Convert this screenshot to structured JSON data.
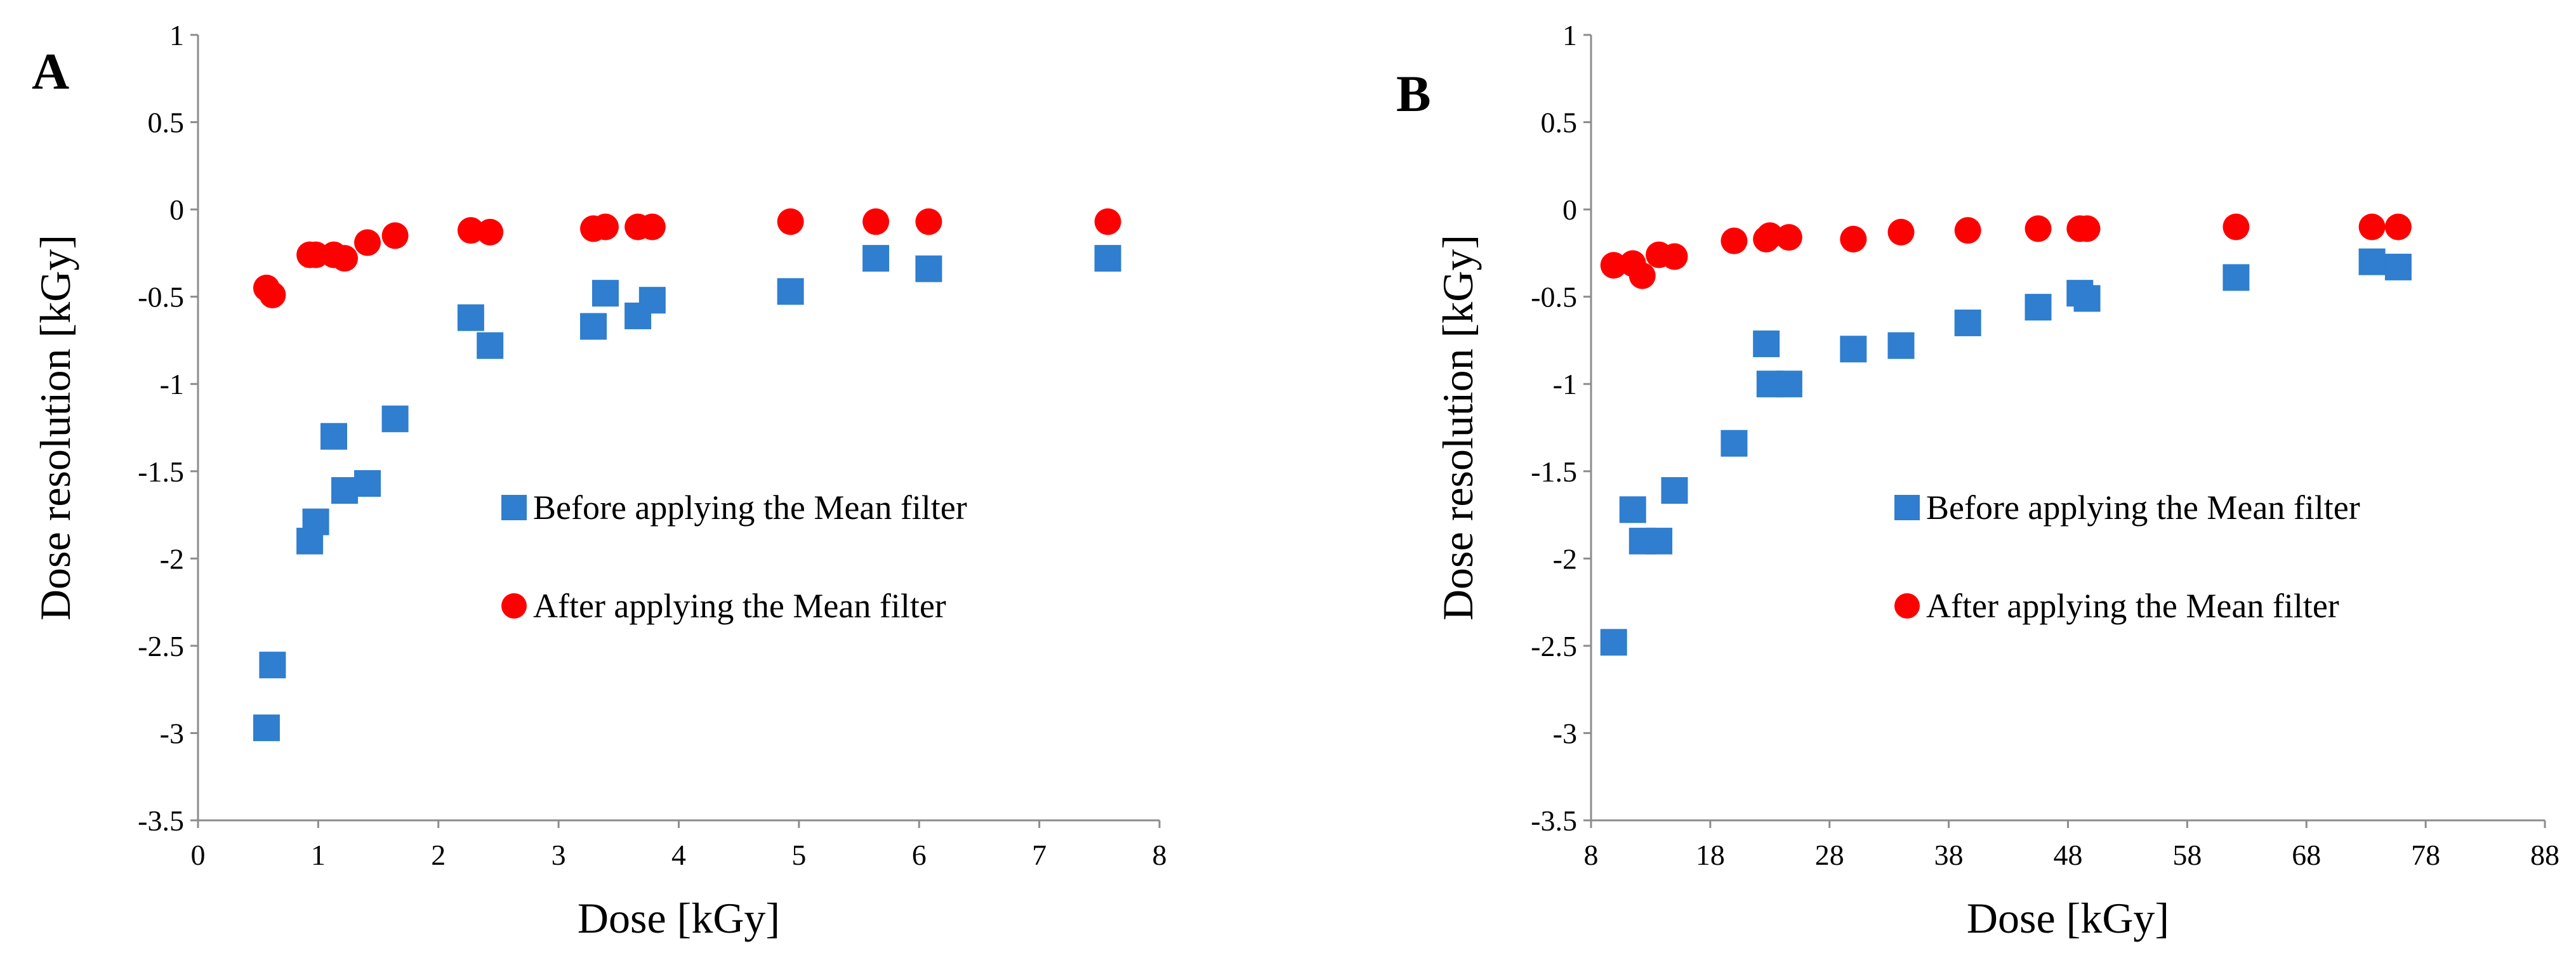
{
  "chart_data": [
    {
      "type": "scatter",
      "panel_label": "A",
      "xlabel": "Dose [kGy]",
      "ylabel": "Dose resolution [kGy]",
      "xlim": [
        0,
        8
      ],
      "ylim": [
        -3.5,
        1
      ],
      "xticks": [
        0,
        1,
        2,
        3,
        4,
        5,
        6,
        7,
        8
      ],
      "yticks": [
        1,
        0.5,
        0,
        -0.5,
        -1,
        -1.5,
        -2,
        -2.5,
        -3,
        -3.5
      ],
      "xtick_labels": [
        "0",
        "1",
        "2",
        "3",
        "4",
        "5",
        "6",
        "7",
        "8"
      ],
      "ytick_labels": [
        "1",
        "0.5",
        "0",
        "-0.5",
        "-1",
        "-1.5",
        "-2",
        "-2.5",
        "-3",
        "-3.5"
      ],
      "legend": [
        "Before applying the Mean filter",
        "After applying the Mean filter"
      ],
      "legend_position": "center-right",
      "series": [
        {
          "name": "Before applying the Mean filter",
          "marker": "square",
          "color": "#2f7ecf",
          "x": [
            0.57,
            0.62,
            0.93,
            0.98,
            1.13,
            1.22,
            1.41,
            1.64,
            2.27,
            2.43,
            3.29,
            3.39,
            3.66,
            3.78,
            4.93,
            5.64,
            6.08,
            7.57
          ],
          "y": [
            -2.97,
            -2.61,
            -1.9,
            -1.79,
            -1.3,
            -1.61,
            -1.57,
            -1.2,
            -0.62,
            -0.78,
            -0.67,
            -0.48,
            -0.61,
            -0.52,
            -0.47,
            -0.28,
            -0.34,
            -0.28
          ]
        },
        {
          "name": "After applying the Mean filter",
          "marker": "circle",
          "color": "#ff0000",
          "x": [
            0.57,
            0.62,
            0.93,
            0.98,
            1.13,
            1.22,
            1.41,
            1.64,
            2.27,
            2.43,
            3.29,
            3.39,
            3.66,
            3.78,
            4.93,
            5.64,
            6.08,
            7.57
          ],
          "y": [
            -0.45,
            -0.49,
            -0.26,
            -0.26,
            -0.26,
            -0.28,
            -0.19,
            -0.15,
            -0.12,
            -0.13,
            -0.11,
            -0.1,
            -0.1,
            -0.1,
            -0.07,
            -0.07,
            -0.07,
            -0.07
          ]
        }
      ]
    },
    {
      "type": "scatter",
      "panel_label": "B",
      "xlabel": "Dose [kGy]",
      "ylabel": "Dose resolution [kGy]",
      "xlim": [
        8,
        88
      ],
      "ylim": [
        -3.5,
        1
      ],
      "xticks": [
        8,
        18,
        28,
        38,
        48,
        58,
        68,
        78,
        88
      ],
      "yticks": [
        1,
        0.5,
        0,
        -0.5,
        -1,
        -1.5,
        -2,
        -2.5,
        -3,
        -3.5
      ],
      "xtick_labels": [
        "8",
        "18",
        "28",
        "38",
        "48",
        "58",
        "68",
        "78",
        "88"
      ],
      "ytick_labels": [
        "1",
        "0.5",
        "0",
        "-0.5",
        "-1",
        "-1.5",
        "-2",
        "-2.5",
        "-3",
        "-3.5"
      ],
      "legend": [
        "Before applying the Mean filter",
        "After applying the Mean filter"
      ],
      "legend_position": "center-right",
      "series": [
        {
          "name": "Before applying the Mean filter",
          "marker": "square",
          "color": "#2f7ecf",
          "x": [
            9.9,
            11.5,
            12.3,
            13.7,
            15.0,
            20.0,
            22.7,
            23.0,
            24.6,
            30.0,
            34.0,
            39.6,
            45.5,
            49.0,
            49.6,
            62.1,
            73.5,
            75.7
          ],
          "y": [
            -2.48,
            -1.72,
            -1.9,
            -1.9,
            -1.61,
            -1.34,
            -0.77,
            -1.0,
            -1.0,
            -0.8,
            -0.78,
            -0.65,
            -0.56,
            -0.48,
            -0.51,
            -0.39,
            -0.3,
            -0.33
          ]
        },
        {
          "name": "After applying the Mean filter",
          "marker": "circle",
          "color": "#ff0000",
          "x": [
            9.9,
            11.5,
            12.3,
            13.7,
            15.0,
            20.0,
            22.7,
            23.0,
            24.6,
            30.0,
            34.0,
            39.6,
            45.5,
            49.0,
            49.6,
            62.1,
            73.5,
            75.7
          ],
          "y": [
            -0.32,
            -0.31,
            -0.38,
            -0.26,
            -0.27,
            -0.18,
            -0.17,
            -0.15,
            -0.16,
            -0.17,
            -0.13,
            -0.12,
            -0.11,
            -0.11,
            -0.11,
            -0.1,
            -0.1,
            -0.1
          ]
        }
      ]
    }
  ]
}
